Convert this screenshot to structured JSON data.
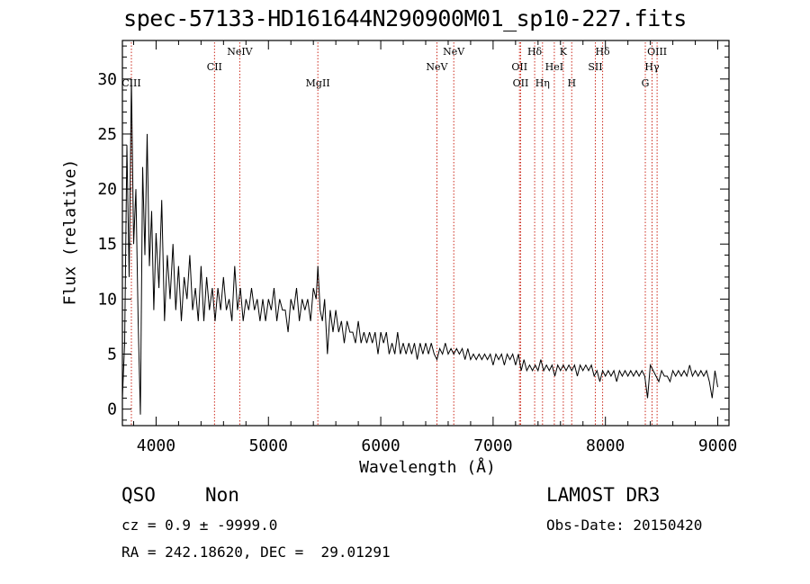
{
  "header": {
    "title": "spec-57133-HD161644N290900M01_sp10-227.fits"
  },
  "footer": {
    "class_label": "QSO",
    "subclass_label": "Non",
    "survey": "LAMOST DR3",
    "cz_line": "cz = 0.9 ± -9999.0",
    "obs_date": "Obs-Date: 20150420",
    "coords": "RA = 242.18620, DEC =  29.01291"
  },
  "colors": {
    "spectrum": "#000000",
    "line_markers": "#cc2a1c",
    "axes": "#000000"
  },
  "chart_data": {
    "type": "line",
    "xlabel": "Wavelength (Å)",
    "ylabel": "Flux (relative)",
    "xlim": [
      3700,
      9100
    ],
    "ylim": [
      -1.5,
      33.5
    ],
    "xticks": [
      4000,
      5000,
      6000,
      7000,
      8000,
      9000
    ],
    "yticks": [
      0,
      5,
      10,
      15,
      20,
      25,
      30
    ],
    "grid": false,
    "emission_lines": [
      {
        "name": "CIII",
        "wavelength": 3780,
        "tier": 3
      },
      {
        "name": "CII",
        "wavelength": 4520,
        "tier": 2
      },
      {
        "name": "NeIV",
        "wavelength": 4745,
        "tier": 1
      },
      {
        "name": "MgII",
        "wavelength": 5440,
        "tier": 3
      },
      {
        "name": "NeV",
        "wavelength": 6500,
        "tier": 2
      },
      {
        "name": "NeV",
        "wavelength": 6650,
        "tier": 1
      },
      {
        "name": "OII",
        "wavelength": 7235,
        "tier": 2
      },
      {
        "name": "OII",
        "wavelength": 7245,
        "tier": 3
      },
      {
        "name": "Hδ",
        "wavelength": 7370,
        "tier": 1
      },
      {
        "name": "Hη",
        "wavelength": 7440,
        "tier": 3
      },
      {
        "name": "HeI",
        "wavelength": 7545,
        "tier": 2
      },
      {
        "name": "K",
        "wavelength": 7625,
        "tier": 1
      },
      {
        "name": "H",
        "wavelength": 7700,
        "tier": 3
      },
      {
        "name": "SII",
        "wavelength": 7910,
        "tier": 2
      },
      {
        "name": "Hδ",
        "wavelength": 7975,
        "tier": 1
      },
      {
        "name": "G",
        "wavelength": 8355,
        "tier": 3
      },
      {
        "name": "Hγ",
        "wavelength": 8415,
        "tier": 2
      },
      {
        "name": "OIII",
        "wavelength": 8460,
        "tier": 1
      }
    ],
    "series": [
      {
        "x": [
          3700,
          3720,
          3740,
          3760,
          3780,
          3800,
          3820,
          3840,
          3860,
          3880,
          3900,
          3920,
          3940,
          3960,
          3980,
          4000,
          4025,
          4050,
          4075,
          4100,
          4125,
          4150,
          4175,
          4200,
          4225,
          4250,
          4275,
          4300,
          4325,
          4350,
          4375,
          4400,
          4425,
          4450,
          4475,
          4500,
          4525,
          4550,
          4575,
          4600,
          4625,
          4650,
          4675,
          4700,
          4725,
          4750,
          4775,
          4800,
          4825,
          4850,
          4875,
          4900,
          4925,
          4950,
          4975,
          5000,
          5025,
          5050,
          5075,
          5100,
          5125,
          5150,
          5175,
          5200,
          5225,
          5250,
          5275,
          5300,
          5325,
          5350,
          5375,
          5400,
          5425,
          5440,
          5460,
          5480,
          5500,
          5525,
          5550,
          5575,
          5600,
          5625,
          5650,
          5675,
          5700,
          5725,
          5750,
          5775,
          5800,
          5825,
          5850,
          5875,
          5900,
          5925,
          5950,
          5975,
          6000,
          6025,
          6050,
          6075,
          6100,
          6125,
          6150,
          6175,
          6200,
          6225,
          6250,
          6275,
          6300,
          6325,
          6350,
          6375,
          6400,
          6425,
          6450,
          6475,
          6500,
          6525,
          6550,
          6575,
          6600,
          6625,
          6650,
          6675,
          6700,
          6725,
          6750,
          6775,
          6800,
          6825,
          6850,
          6875,
          6900,
          6925,
          6950,
          6975,
          7000,
          7025,
          7050,
          7075,
          7100,
          7125,
          7150,
          7175,
          7200,
          7225,
          7250,
          7275,
          7300,
          7325,
          7350,
          7375,
          7400,
          7425,
          7450,
          7475,
          7500,
          7525,
          7550,
          7575,
          7600,
          7625,
          7650,
          7675,
          7700,
          7725,
          7750,
          7775,
          7800,
          7825,
          7850,
          7875,
          7900,
          7925,
          7950,
          7975,
          8000,
          8025,
          8050,
          8075,
          8100,
          8125,
          8150,
          8175,
          8200,
          8225,
          8250,
          8275,
          8300,
          8325,
          8350,
          8375,
          8400,
          8425,
          8450,
          8475,
          8500,
          8525,
          8550,
          8575,
          8600,
          8625,
          8650,
          8675,
          8700,
          8725,
          8750,
          8775,
          8800,
          8825,
          8850,
          8875,
          8900,
          8925,
          8950,
          8975,
          9000
        ],
        "y": [
          1,
          6,
          24,
          12,
          30,
          15,
          20,
          8,
          -0.5,
          22,
          14,
          25,
          13,
          18,
          9,
          16,
          11,
          19,
          8,
          14,
          10,
          15,
          9,
          13,
          8,
          12,
          10,
          14,
          9,
          11,
          8,
          13,
          8,
          12,
          9,
          11,
          8,
          11,
          9,
          12,
          9,
          10,
          8,
          13,
          9,
          11,
          8,
          10,
          9,
          11,
          9,
          10,
          8,
          10,
          8,
          10,
          9,
          11,
          8,
          10,
          9,
          9,
          7,
          10,
          9,
          11,
          8,
          10,
          9,
          10,
          8,
          11,
          10,
          13,
          9,
          8,
          10,
          5,
          9,
          7,
          9,
          7,
          8,
          6,
          8,
          7,
          7,
          6,
          8,
          6,
          7,
          6,
          7,
          6,
          7,
          5,
          7,
          6,
          7,
          5,
          6,
          5,
          7,
          5,
          6,
          5,
          6,
          5,
          6,
          4.5,
          6,
          5,
          6,
          5,
          6,
          5,
          4.5,
          5.5,
          5,
          6,
          5,
          5.5,
          5,
          5.5,
          5,
          5.5,
          4.5,
          5.5,
          4.5,
          5,
          4.5,
          5,
          4.5,
          5,
          4.5,
          5,
          4,
          5,
          4.5,
          5,
          4,
          5,
          4.5,
          5,
          4,
          5,
          3.5,
          4.5,
          3.5,
          4,
          3.5,
          4,
          3.5,
          4.5,
          3.5,
          4,
          3.5,
          4,
          3,
          4,
          3.5,
          4,
          3.5,
          4,
          3.5,
          4,
          3,
          4,
          3.5,
          4,
          3.5,
          4,
          3,
          3.5,
          2.5,
          3.5,
          3,
          3.5,
          3,
          3.5,
          2.5,
          3.5,
          3,
          3.5,
          3,
          3.5,
          3,
          3.5,
          3,
          3.5,
          3,
          1,
          4,
          3.5,
          3,
          2.5,
          3.5,
          3,
          3,
          2.5,
          3.5,
          3,
          3.5,
          3,
          3.5,
          3,
          4,
          3,
          3.5,
          3,
          3.5,
          3,
          3.5,
          2.5,
          1,
          3.5,
          2
        ]
      }
    ]
  }
}
